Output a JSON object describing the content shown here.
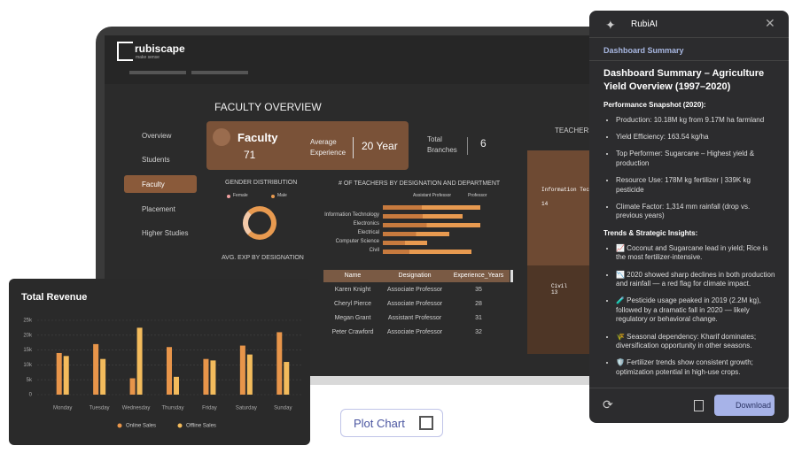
{
  "chart_data": {
    "type": "bar",
    "title": "Total Revenue",
    "categories": [
      "Monday",
      "Tuesday",
      "Wednesday",
      "Thursday",
      "Friday",
      "Saturday",
      "Sunday"
    ],
    "series": [
      {
        "name": "Online Sales",
        "color": "#e8954a",
        "values": [
          14000,
          17000,
          5500,
          16000,
          12000,
          16500,
          21000
        ]
      },
      {
        "name": "Offline Sales",
        "color": "#f3bb5c",
        "values": [
          13000,
          12000,
          22500,
          6000,
          11500,
          13500,
          11000
        ]
      }
    ],
    "ylim": [
      0,
      25000
    ],
    "yticks": [
      0,
      {
        "value": 5000,
        "label": "5k"
      },
      {
        "value": 10000,
        "label": "10k"
      },
      {
        "value": 15000,
        "label": "15k"
      },
      {
        "value": 20000,
        "label": "20k"
      },
      {
        "value": 25000,
        "label": "25k"
      }
    ],
    "grid": true
  },
  "dashboard": {
    "logo": "rubiscape",
    "tagline": "make sense",
    "title": "FACULTY OVERVIEW",
    "sidebar": [
      "Overview",
      "Students",
      "Faculty",
      "Placement",
      "Higher Studies"
    ],
    "card": {
      "label": "Faculty",
      "count": "71",
      "exp_label": "Average Experience",
      "exp_value": "20 Year",
      "branches_label": "Total Branches",
      "branches_value": "6"
    },
    "gender": {
      "title": "GENDER DISTRIBUTION",
      "legend": [
        "Female",
        "Male"
      ]
    },
    "avg_exp_title": "AVG. EXP BY DESIGNATION",
    "teachers_chart": {
      "title": "# OF TEACHERS BY DESIGNATION AND DEPARTMENT",
      "legend": [
        "Assistant Professor",
        "Professor"
      ],
      "departments": [
        "Information Technology",
        "Electronics",
        "Electrical",
        "Computer Science",
        "Civil"
      ]
    },
    "table": {
      "header": [
        "Name",
        "Designation",
        "Experience_Years"
      ],
      "rows": [
        [
          "Karen Knight",
          "Associate Professor",
          "35"
        ],
        [
          "Cheryl Pierce",
          "Associate Professor",
          "28"
        ],
        [
          "Megan Grant",
          "Assistant Professor",
          "31"
        ],
        [
          "Peter Crawford",
          "Associate Professor",
          "32"
        ]
      ]
    },
    "treemap": {
      "title": "TEACHERS",
      "cells": [
        {
          "label": "Information Technology",
          "value": "14"
        },
        {
          "label": "Civil",
          "value": "13"
        }
      ]
    }
  },
  "assistant": {
    "name": "RubiAI",
    "section": "Dashboard Summary",
    "heading": "Dashboard Summary – Agriculture Yield Overview (1997–2020)",
    "snapshot_title": "Performance Snapshot (2020):",
    "snapshot": [
      "Production: 10.18M kg from 9.17M ha farmland",
      "Yield Efficiency: 163.54 kg/ha",
      "Top Performer: Sugarcane – Highest yield & production",
      "Resource Use: 178M kg fertilizer | 339K kg pesticide",
      "Climate Factor: 1,314 mm rainfall (drop vs. previous years)"
    ],
    "insights_title": "Trends & Strategic Insights:",
    "insights": [
      "📈 Coconut and Sugarcane lead in yield; Rice is the most fertilizer-intensive.",
      "📉 2020 showed sharp declines in both production and rainfall — a red flag for climate impact.",
      "🧪 Pesticide usage peaked in 2019 (2.2M kg), followed by a dramatic fall in 2020 — likely regulatory or behavioral change.",
      "🌾 Seasonal dependency: Kharif dominates; diversification opportunity in other seasons.",
      "🛡️ Fertilizer trends show consistent growth; optimization potential in high-use crops."
    ],
    "download": "Download"
  },
  "plot_button": "Plot Chart"
}
